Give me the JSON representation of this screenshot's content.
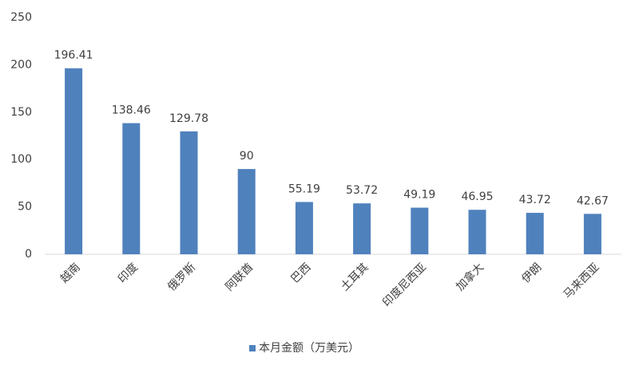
{
  "chart_data": {
    "type": "bar",
    "categories": [
      "越南",
      "印度",
      "俄罗斯",
      "阿联酋",
      "巴西",
      "土耳其",
      "印度尼西亚",
      "加拿大",
      "伊朗",
      "马来西亚"
    ],
    "series": [
      {
        "name": "本月金额（万美元）",
        "color": "#4f81bd",
        "values": [
          196.41,
          138.46,
          129.78,
          90,
          55.19,
          53.72,
          49.19,
          46.95,
          43.72,
          42.67
        ]
      }
    ],
    "ylim": [
      0,
      250
    ],
    "yticks": [
      0,
      50,
      100,
      150,
      200,
      250
    ],
    "grid": false,
    "legend": "bottom",
    "data_labels": true
  }
}
